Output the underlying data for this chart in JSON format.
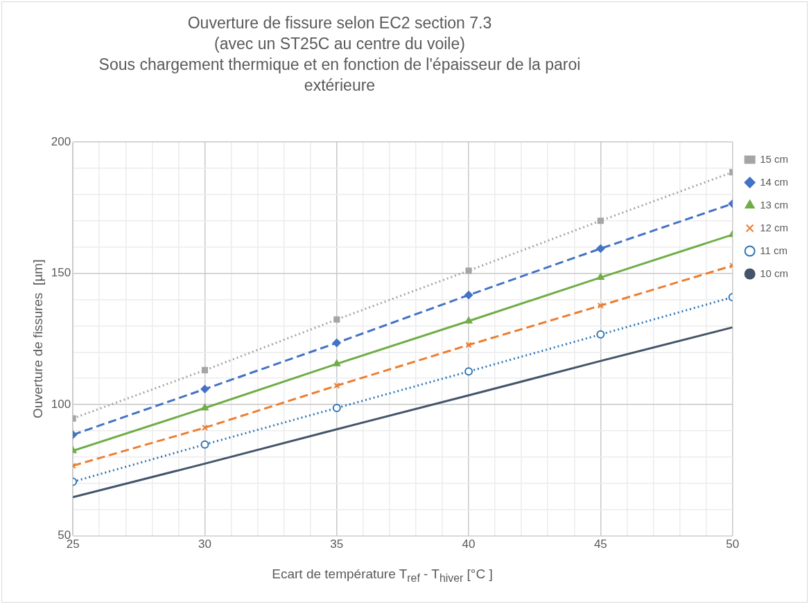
{
  "chart_data": {
    "type": "line",
    "title": "Ouverture de fissure selon EC2 section 7.3\n(avec un ST25C au centre du voile)\nSous chargement thermique et en fonction de l'épaisseur de la paroi\nextérieure",
    "xlabel": "Ecart de température T$_{ref}$ - T$_{hiver}$ [°C ]",
    "ylabel": "Ouverture de fissures  [µm]",
    "x": [
      25,
      30,
      35,
      40,
      45,
      50
    ],
    "xlim": [
      25,
      50
    ],
    "xticks": [
      25,
      {
        "value": 26,
        "label": null
      },
      {
        "value": 27,
        "label": null
      },
      {
        "value": 28,
        "label": null
      },
      {
        "value": 29,
        "label": null
      },
      30,
      {
        "value": 31,
        "label": null
      },
      {
        "value": 32,
        "label": null
      },
      {
        "value": 33,
        "label": null
      },
      {
        "value": 34,
        "label": null
      },
      35,
      {
        "value": 36,
        "label": null
      },
      {
        "value": 37,
        "label": null
      },
      {
        "value": 38,
        "label": null
      },
      {
        "value": 39,
        "label": null
      },
      40,
      {
        "value": 41,
        "label": null
      },
      {
        "value": 42,
        "label": null
      },
      {
        "value": 43,
        "label": null
      },
      {
        "value": 44,
        "label": null
      },
      45,
      {
        "value": 46,
        "label": null
      },
      {
        "value": 47,
        "label": null
      },
      {
        "value": 48,
        "label": null
      },
      {
        "value": 49,
        "label": null
      },
      50
    ],
    "ylim": [
      50,
      200
    ],
    "yticks": [
      50,
      {
        "value": 60,
        "label": null
      },
      {
        "value": 70,
        "label": null
      },
      {
        "value": 80,
        "label": null
      },
      {
        "value": 90,
        "label": null
      },
      100,
      {
        "value": 110,
        "label": null
      },
      {
        "value": 120,
        "label": null
      },
      {
        "value": 130,
        "label": null
      },
      {
        "value": 140,
        "label": null
      },
      150,
      {
        "value": 160,
        "label": null
      },
      {
        "value": 170,
        "label": null
      },
      {
        "value": 180,
        "label": null
      },
      {
        "value": 190,
        "label": null
      },
      200
    ],
    "grid": true,
    "legend": "right",
    "series": [
      {
        "name": "15 cm",
        "color": "#a5a5a5",
        "marker": "square",
        "line_style": "dotted",
        "values": [
          94.7,
          113.1,
          132.4,
          151,
          170,
          188.5
        ]
      },
      {
        "name": "14 cm",
        "color": "#4472c4",
        "marker": "diamond",
        "line_style": "dashed",
        "values": [
          88.5,
          105.9,
          123.5,
          141.7,
          159.4,
          176.5
        ]
      },
      {
        "name": "13 cm",
        "color": "#70ad47",
        "marker": "triangle",
        "line_style": "solid",
        "values": [
          82.4,
          98.7,
          115.5,
          131.8,
          148.4,
          164.7
        ]
      },
      {
        "name": "12 cm",
        "color": "#ed7d31",
        "marker": "cross",
        "line_style": "dashed",
        "values": [
          76.7,
          91.2,
          107.2,
          122.7,
          137.7,
          152.9
        ]
      },
      {
        "name": "11 cm",
        "color": "#2e75b6",
        "marker": "circle",
        "line_style": "dotted",
        "values": [
          70.6,
          84.8,
          98.7,
          112.6,
          126.7,
          140.9
        ]
      },
      {
        "name": "10 cm",
        "color": "#44546a",
        "marker": "none",
        "line_style": "solid",
        "values": [
          64.7,
          77.5,
          90.6,
          103.5,
          116.6,
          129.4
        ]
      }
    ]
  }
}
